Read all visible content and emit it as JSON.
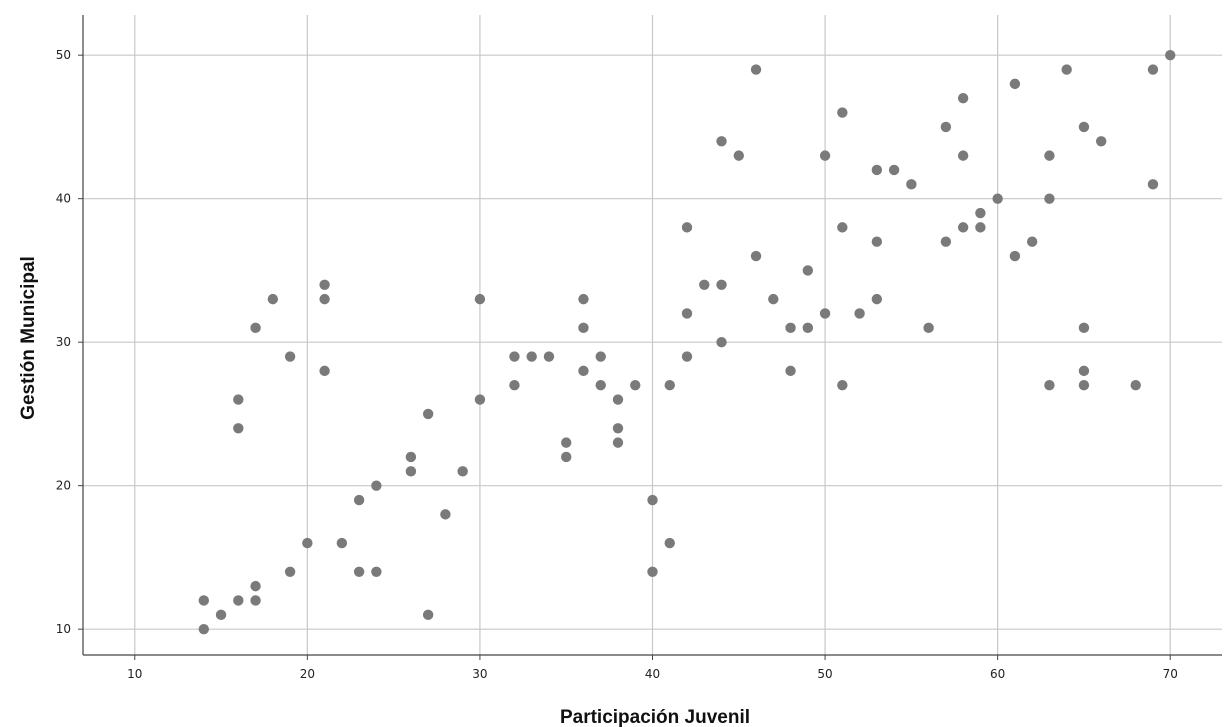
{
  "chart_data": {
    "type": "scatter",
    "title": "",
    "xlabel": "Participación Juvenil",
    "ylabel": "Gestión Municipal",
    "xlim": [
      7,
      73
    ],
    "ylim": [
      8.2,
      52.8
    ],
    "xticks": [
      10,
      20,
      30,
      40,
      50,
      60,
      70
    ],
    "yticks": [
      10,
      20,
      30,
      40,
      50
    ],
    "grid": true,
    "colors": {
      "point": "#7a7a7a",
      "grid": "#c8c8c8",
      "axis": "#444444"
    },
    "points": [
      [
        14,
        12
      ],
      [
        14,
        10
      ],
      [
        15,
        11
      ],
      [
        16,
        12
      ],
      [
        16,
        26
      ],
      [
        16,
        24
      ],
      [
        17,
        31
      ],
      [
        17,
        13
      ],
      [
        17,
        12
      ],
      [
        18,
        33
      ],
      [
        19,
        29
      ],
      [
        19,
        14
      ],
      [
        20,
        16
      ],
      [
        21,
        34
      ],
      [
        21,
        33
      ],
      [
        21,
        28
      ],
      [
        22,
        16
      ],
      [
        23,
        19
      ],
      [
        23,
        14
      ],
      [
        24,
        20
      ],
      [
        24,
        14
      ],
      [
        26,
        22
      ],
      [
        26,
        21
      ],
      [
        27,
        25
      ],
      [
        27,
        11
      ],
      [
        28,
        18
      ],
      [
        29,
        21
      ],
      [
        30,
        33
      ],
      [
        30,
        26
      ],
      [
        32,
        29
      ],
      [
        32,
        27
      ],
      [
        33,
        29
      ],
      [
        34,
        29
      ],
      [
        35,
        23
      ],
      [
        35,
        22
      ],
      [
        36,
        33
      ],
      [
        36,
        31
      ],
      [
        36,
        28
      ],
      [
        37,
        29
      ],
      [
        37,
        27
      ],
      [
        38,
        26
      ],
      [
        38,
        24
      ],
      [
        38,
        23
      ],
      [
        39,
        27
      ],
      [
        40,
        19
      ],
      [
        40,
        14
      ],
      [
        41,
        27
      ],
      [
        41,
        16
      ],
      [
        42,
        38
      ],
      [
        42,
        32
      ],
      [
        42,
        29
      ],
      [
        43,
        34
      ],
      [
        44,
        44
      ],
      [
        44,
        34
      ],
      [
        44,
        30
      ],
      [
        45,
        43
      ],
      [
        46,
        49
      ],
      [
        46,
        36
      ],
      [
        47,
        33
      ],
      [
        48,
        31
      ],
      [
        48,
        28
      ],
      [
        49,
        35
      ],
      [
        49,
        31
      ],
      [
        50,
        43
      ],
      [
        50,
        32
      ],
      [
        51,
        46
      ],
      [
        51,
        38
      ],
      [
        51,
        27
      ],
      [
        52,
        32
      ],
      [
        53,
        42
      ],
      [
        53,
        37
      ],
      [
        53,
        33
      ],
      [
        54,
        42
      ],
      [
        55,
        41
      ],
      [
        56,
        31
      ],
      [
        57,
        45
      ],
      [
        57,
        37
      ],
      [
        58,
        47
      ],
      [
        58,
        43
      ],
      [
        58,
        38
      ],
      [
        59,
        39
      ],
      [
        59,
        38
      ],
      [
        60,
        40
      ],
      [
        61,
        48
      ],
      [
        61,
        36
      ],
      [
        62,
        37
      ],
      [
        63,
        43
      ],
      [
        63,
        40
      ],
      [
        63,
        27
      ],
      [
        64,
        49
      ],
      [
        65,
        45
      ],
      [
        65,
        31
      ],
      [
        65,
        28
      ],
      [
        65,
        27
      ],
      [
        66,
        44
      ],
      [
        68,
        27
      ],
      [
        69,
        49
      ],
      [
        69,
        41
      ],
      [
        70,
        50
      ]
    ]
  }
}
